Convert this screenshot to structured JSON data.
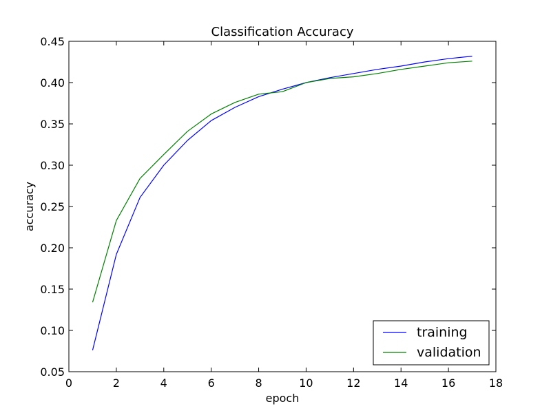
{
  "chart_data": {
    "type": "line",
    "title": "Classification Accuracy",
    "xlabel": "epoch",
    "ylabel": "accuracy",
    "xlim": [
      0,
      18
    ],
    "ylim": [
      0.05,
      0.45
    ],
    "x_ticks": [
      0,
      2,
      4,
      6,
      8,
      10,
      12,
      14,
      16,
      18
    ],
    "y_ticks": [
      0.05,
      0.1,
      0.15,
      0.2,
      0.25,
      0.3,
      0.35,
      0.4,
      0.45
    ],
    "x_tick_labels": [
      "0",
      "2",
      "4",
      "6",
      "8",
      "10",
      "12",
      "14",
      "16",
      "18"
    ],
    "y_tick_labels": [
      "0.05",
      "0.10",
      "0.15",
      "0.20",
      "0.25",
      "0.30",
      "0.35",
      "0.40",
      "0.45"
    ],
    "grid": false,
    "legend_position": "bottom-right",
    "x": [
      1,
      2,
      3,
      4,
      5,
      6,
      7,
      8,
      9,
      10,
      11,
      12,
      13,
      14,
      15,
      16,
      17
    ],
    "series": [
      {
        "name": "training",
        "color": "#0000ff",
        "values": [
          0.076,
          0.192,
          0.261,
          0.3,
          0.33,
          0.354,
          0.37,
          0.383,
          0.392,
          0.4,
          0.406,
          0.411,
          0.416,
          0.42,
          0.425,
          0.429,
          0.432
        ]
      },
      {
        "name": "validation",
        "color": "#008000",
        "values": [
          0.134,
          0.233,
          0.284,
          0.313,
          0.341,
          0.362,
          0.376,
          0.386,
          0.389,
          0.4,
          0.405,
          0.407,
          0.411,
          0.416,
          0.42,
          0.424,
          0.426
        ]
      }
    ]
  }
}
